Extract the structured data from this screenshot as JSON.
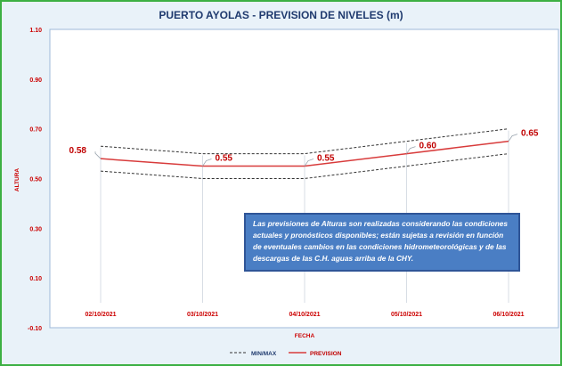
{
  "chart_data": {
    "type": "line",
    "title": "PUERTO AYOLAS - PREVISION DE NIVELES (m)",
    "xlabel": "FECHA",
    "ylabel": "ALTURA",
    "categories": [
      "02/10/2021",
      "03/10/2021",
      "04/10/2021",
      "05/10/2021",
      "06/10/2021"
    ],
    "ylim": [
      -0.1,
      1.1
    ],
    "yticks": [
      "1.10",
      "0.90",
      "0.70",
      "0.50",
      "0.30",
      "0.10",
      "-0.10"
    ],
    "ytick_values": [
      1.1,
      0.9,
      0.7,
      0.5,
      0.3,
      0.1,
      -0.1
    ],
    "grid": false,
    "legend_position": "bottom",
    "series": [
      {
        "name": "MIN/MAX",
        "style": "dashed",
        "color": "#333333",
        "values": [
          0.63,
          0.6,
          0.6,
          0.65,
          0.7
        ]
      },
      {
        "name": "MIN/MAX",
        "style": "dashed",
        "color": "#333333",
        "values": [
          0.53,
          0.5,
          0.5,
          0.55,
          0.6
        ]
      },
      {
        "name": "PREVISION",
        "style": "solid",
        "color": "#d83b3b",
        "values": [
          0.58,
          0.55,
          0.55,
          0.6,
          0.65
        ]
      }
    ],
    "data_labels": [
      "0.58",
      "0.55",
      "0.55",
      "0.60",
      "0.65"
    ],
    "annotation": "Las previsiones de Alturas son realizadas considerando las condiciones actuales y pronósticos disponibles; están sujetas a revisión en función de eventuales cambios en las condiciones hidrometeorológicas y de las descargas de las C.H. aguas arriba de la CHY."
  },
  "colors": {
    "border": "#3cb043",
    "background": "#e9f2f9",
    "title": "#1f3a6e",
    "axis_text": "#cc0000",
    "prevision": "#d83b3b",
    "minmax": "#333333",
    "note_bg": "#4a7ec4"
  }
}
